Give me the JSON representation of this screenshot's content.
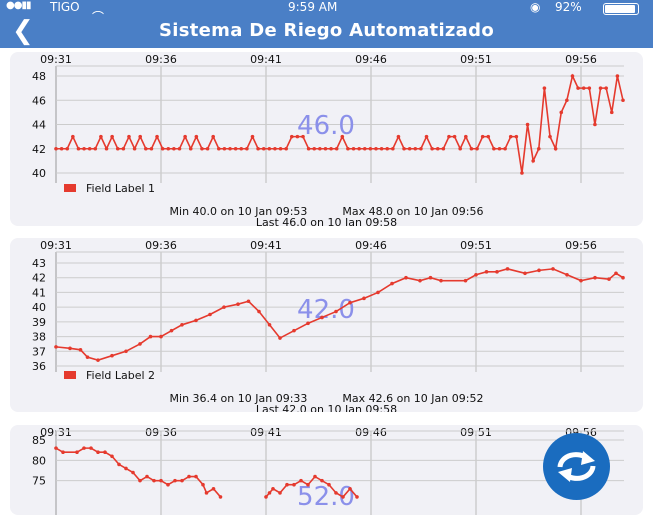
{
  "status_bar": {
    "carrier": "TIGO",
    "time": "9:59 AM",
    "battery": "92%"
  },
  "header": {
    "title": "Sistema De Riego Automatizado",
    "back_icon": "chevron-left-icon"
  },
  "colors": {
    "header": "#4a7fc6",
    "series": "#e53a2e",
    "overlay": "#8b90ea",
    "refresh": "#1a6cbf"
  },
  "charts": [
    {
      "type": "line",
      "x_ticks": [
        "09:31",
        "09:36",
        "09:41",
        "09:46",
        "09:51",
        "09:56"
      ],
      "y_ticks": [
        "40",
        "42",
        "44",
        "46",
        "48"
      ],
      "ylim": [
        40,
        48
      ],
      "legend": "Field Label 1",
      "overlay_value": "46.0",
      "stats": {
        "min": "Min 40.0 on 10 Jan 09:53",
        "max": "Max 48.0 on 10 Jan 09:56",
        "last": "Last 46.0 on 10 Jan 09:58"
      },
      "x_start": "09:31",
      "x_end": "09:58",
      "values": [
        42,
        42,
        42,
        43,
        42,
        42,
        42,
        42,
        43,
        42,
        43,
        42,
        42,
        43,
        42,
        43,
        42,
        42,
        43,
        42,
        42,
        42,
        42,
        43,
        42,
        43,
        42,
        42,
        43,
        42,
        42,
        42,
        42,
        42,
        42,
        43,
        42,
        42,
        42,
        42,
        42,
        42,
        43,
        43,
        43,
        42,
        42,
        42,
        42,
        42,
        42,
        43,
        42,
        42,
        42,
        42,
        42,
        42,
        42,
        42,
        42,
        43,
        42,
        42,
        42,
        42,
        43,
        42,
        42,
        42,
        43,
        43,
        42,
        43,
        42,
        42,
        43,
        43,
        42,
        42,
        42,
        43,
        43,
        40,
        44,
        41,
        42,
        47,
        43,
        42,
        45,
        46,
        48,
        47,
        47,
        47,
        44,
        47,
        47,
        45,
        48,
        46
      ]
    },
    {
      "type": "line",
      "x_ticks": [
        "09:31",
        "09:36",
        "09:41",
        "09:46",
        "09:51",
        "09:56"
      ],
      "y_ticks": [
        "36",
        "37",
        "38",
        "39",
        "40",
        "41",
        "42",
        "43"
      ],
      "ylim": [
        36,
        43
      ],
      "legend": "Field Label 2",
      "overlay_value": "42.0",
      "stats": {
        "min": "Min 36.4 on 10 Jan 09:33",
        "max": "Max 42.6 on 10 Jan 09:52",
        "last": "Last 42.0 on 10 Jan 09:58"
      },
      "points": [
        [
          "09:31:00",
          37.3
        ],
        [
          "09:31:40",
          37.2
        ],
        [
          "09:32:10",
          37.1
        ],
        [
          "09:32:30",
          36.6
        ],
        [
          "09:33:00",
          36.4
        ],
        [
          "09:33:40",
          36.7
        ],
        [
          "09:34:20",
          37.0
        ],
        [
          "09:35:00",
          37.5
        ],
        [
          "09:35:30",
          38.0
        ],
        [
          "09:36:00",
          38.0
        ],
        [
          "09:36:30",
          38.4
        ],
        [
          "09:37:00",
          38.8
        ],
        [
          "09:37:40",
          39.1
        ],
        [
          "09:38:20",
          39.5
        ],
        [
          "09:39:00",
          40.0
        ],
        [
          "09:39:40",
          40.2
        ],
        [
          "09:40:10",
          40.4
        ],
        [
          "09:40:40",
          39.7
        ],
        [
          "09:41:10",
          38.8
        ],
        [
          "09:41:40",
          37.9
        ],
        [
          "09:42:20",
          38.4
        ],
        [
          "09:43:00",
          38.9
        ],
        [
          "09:43:40",
          39.3
        ],
        [
          "09:44:20",
          39.7
        ],
        [
          "09:45:00",
          40.3
        ],
        [
          "09:45:40",
          40.6
        ],
        [
          "09:46:20",
          41.0
        ],
        [
          "09:47:00",
          41.6
        ],
        [
          "09:47:40",
          42.0
        ],
        [
          "09:48:20",
          41.8
        ],
        [
          "09:48:50",
          42.0
        ],
        [
          "09:49:20",
          41.8
        ],
        [
          "09:50:30",
          41.8
        ],
        [
          "09:51:00",
          42.2
        ],
        [
          "09:51:30",
          42.4
        ],
        [
          "09:52:00",
          42.4
        ],
        [
          "09:52:30",
          42.6
        ],
        [
          "09:53:20",
          42.3
        ],
        [
          "09:54:00",
          42.5
        ],
        [
          "09:54:40",
          42.6
        ],
        [
          "09:55:20",
          42.2
        ],
        [
          "09:56:00",
          41.8
        ],
        [
          "09:56:40",
          42.0
        ],
        [
          "09:57:20",
          41.9
        ],
        [
          "09:57:40",
          42.3
        ],
        [
          "09:58:00",
          42.0
        ]
      ]
    },
    {
      "type": "line",
      "x_ticks": [
        "09:31",
        "09:36",
        "09:41",
        "09:46",
        "09:51",
        "09:56"
      ],
      "y_ticks": [
        "75",
        "80",
        "85"
      ],
      "ylim": [
        70,
        85
      ],
      "overlay_value": "52.0",
      "points": [
        [
          "09:31:00",
          83
        ],
        [
          "09:31:20",
          82
        ],
        [
          "09:32:00",
          82
        ],
        [
          "09:32:20",
          83
        ],
        [
          "09:32:40",
          83
        ],
        [
          "09:33:00",
          82
        ],
        [
          "09:33:20",
          82
        ],
        [
          "09:33:40",
          81
        ],
        [
          "09:34:00",
          79
        ],
        [
          "09:34:20",
          78
        ],
        [
          "09:34:40",
          77
        ],
        [
          "09:35:00",
          75
        ],
        [
          "09:35:20",
          76
        ],
        [
          "09:35:40",
          75
        ],
        [
          "09:36:00",
          75
        ],
        [
          "09:36:20",
          74
        ],
        [
          "09:36:40",
          75
        ],
        [
          "09:37:00",
          75
        ],
        [
          "09:37:20",
          76
        ],
        [
          "09:37:40",
          76
        ],
        [
          "09:38:00",
          74
        ],
        [
          "09:38:10",
          72
        ],
        [
          "09:38:30",
          73
        ],
        [
          "09:38:50",
          71
        ],
        [
          "09:41:00",
          71
        ],
        [
          "09:41:10",
          72
        ],
        [
          "09:41:20",
          73
        ],
        [
          "09:41:40",
          72
        ],
        [
          "09:42:00",
          74
        ],
        [
          "09:42:20",
          74
        ],
        [
          "09:42:40",
          75
        ],
        [
          "09:43:00",
          74
        ],
        [
          "09:43:20",
          76
        ],
        [
          "09:43:40",
          75
        ],
        [
          "09:44:00",
          74
        ],
        [
          "09:44:20",
          72
        ],
        [
          "09:44:40",
          71
        ],
        [
          "09:45:00",
          73
        ],
        [
          "09:45:20",
          71
        ]
      ]
    }
  ],
  "refresh_icon": "refresh-icon"
}
